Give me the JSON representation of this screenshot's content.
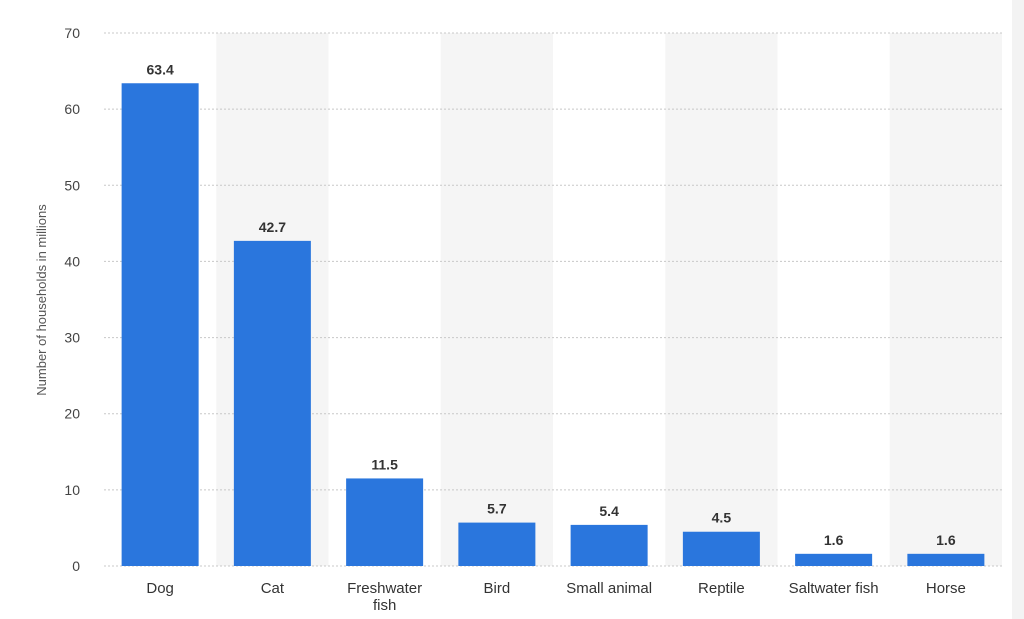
{
  "chart_data": {
    "type": "bar",
    "categories": [
      "Dog",
      "Cat",
      "Freshwater fish",
      "Bird",
      "Small animal",
      "Reptile",
      "Saltwater fish",
      "Horse"
    ],
    "category_lines": [
      [
        "Dog"
      ],
      [
        "Cat"
      ],
      [
        "Freshwater",
        "fish"
      ],
      [
        "Bird"
      ],
      [
        "Small animal"
      ],
      [
        "Reptile"
      ],
      [
        "Saltwater fish"
      ],
      [
        "Horse"
      ]
    ],
    "values": [
      63.4,
      42.7,
      11.5,
      5.7,
      5.4,
      4.5,
      1.6,
      1.6
    ],
    "value_labels": [
      "63.4",
      "42.7",
      "11.5",
      "5.7",
      "5.4",
      "4.5",
      "1.6",
      "1.6"
    ],
    "ylabel": "Number of households in millions",
    "ylim": [
      0,
      70
    ],
    "yticks": [
      0,
      10,
      20,
      30,
      40,
      50,
      60,
      70
    ],
    "grid": true,
    "bar_color": "#2a76dd"
  }
}
